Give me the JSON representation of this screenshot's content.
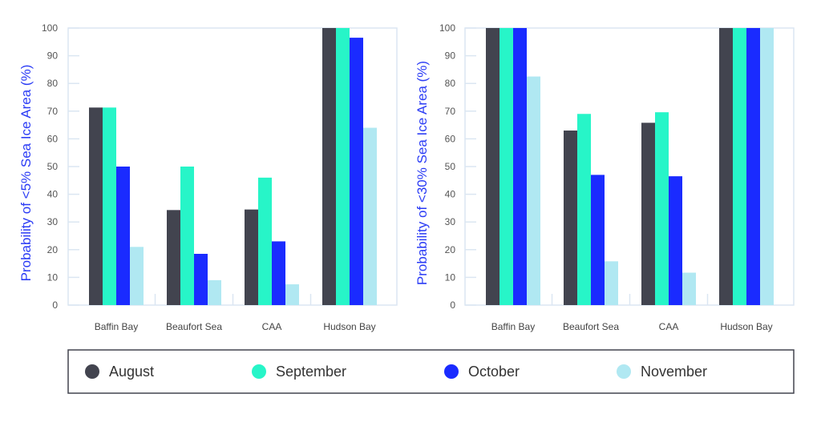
{
  "chart_data": [
    {
      "type": "bar",
      "categories": [
        "Baffin Bay",
        "Beaufort Sea",
        "CAA",
        "Hudson Bay"
      ],
      "ylabel": "Probability of <5% Sea Ice Area (%)",
      "ylim": [
        0,
        100
      ],
      "yticks": [
        0,
        10,
        20,
        30,
        40,
        50,
        60,
        70,
        80,
        90,
        100
      ],
      "series": [
        {
          "name": "August",
          "values": [
            71.3,
            34.3,
            34.5,
            100
          ]
        },
        {
          "name": "September",
          "values": [
            71.3,
            50,
            46,
            100
          ]
        },
        {
          "name": "October",
          "values": [
            50,
            18.5,
            23,
            96.5
          ]
        },
        {
          "name": "November",
          "values": [
            21,
            9,
            7.5,
            64
          ]
        }
      ]
    },
    {
      "type": "bar",
      "categories": [
        "Baffin Bay",
        "Beaufort Sea",
        "CAA",
        "Hudson Bay"
      ],
      "ylabel": "Probability of <30% Sea Ice Area (%)",
      "ylim": [
        0,
        100
      ],
      "yticks": [
        0,
        10,
        20,
        30,
        40,
        50,
        60,
        70,
        80,
        90,
        100
      ],
      "series": [
        {
          "name": "August",
          "values": [
            100,
            63,
            65.8,
            100
          ]
        },
        {
          "name": "September",
          "values": [
            100,
            69,
            69.6,
            100
          ]
        },
        {
          "name": "October",
          "values": [
            100,
            47,
            46.5,
            100
          ]
        },
        {
          "name": "November",
          "values": [
            82.5,
            15.8,
            11.7,
            100
          ]
        }
      ]
    }
  ],
  "colors": {
    "August": "#42444f",
    "September": "#27f5c8",
    "October": "#1a2bff",
    "November": "#b0e8f2",
    "ylabel": "#2a3bf5"
  },
  "legend": {
    "placement": "bottom",
    "items": [
      "August",
      "September",
      "October",
      "November"
    ]
  }
}
